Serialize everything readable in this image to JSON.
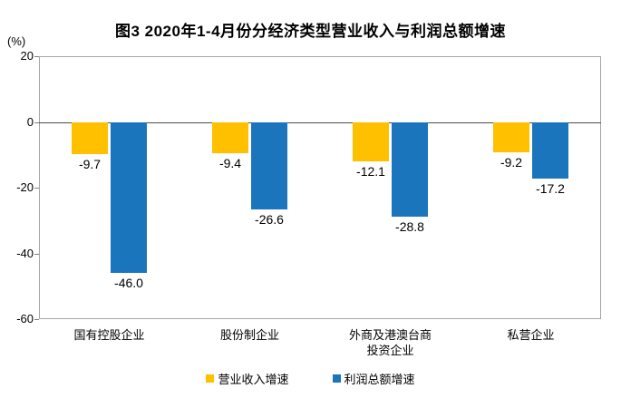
{
  "chart_data": {
    "type": "bar",
    "title": "图3 2020年1-4月份分经济类型营业收入与利润总额增速",
    "unit_label": "(%)",
    "categories": [
      "国有控股企业",
      "股份制企业",
      "外商及港澳台商\n投资企业",
      "私营企业"
    ],
    "series": [
      {
        "name": "营业收入增速",
        "color": "#FFC000",
        "values": [
          -9.7,
          -9.4,
          -12.1,
          -9.2
        ]
      },
      {
        "name": "利润总额增速",
        "color": "#1B75BC",
        "values": [
          -46.0,
          -26.6,
          -28.8,
          -17.2
        ]
      }
    ],
    "value_labels": [
      [
        "-9.7",
        "-9.4",
        "-12.1",
        "-9.2"
      ],
      [
        "-46.0",
        "-26.6",
        "-28.8",
        "-17.2"
      ]
    ],
    "ylim": [
      -60,
      20
    ],
    "yticks": [
      20,
      0,
      -20,
      -40,
      -60
    ],
    "grid": false,
    "legend_position": "bottom",
    "colors": {
      "plot_border": "#a6a6a6",
      "zero_line": "#4d4d4d",
      "text": "#000000",
      "background": "#ffffff"
    }
  }
}
